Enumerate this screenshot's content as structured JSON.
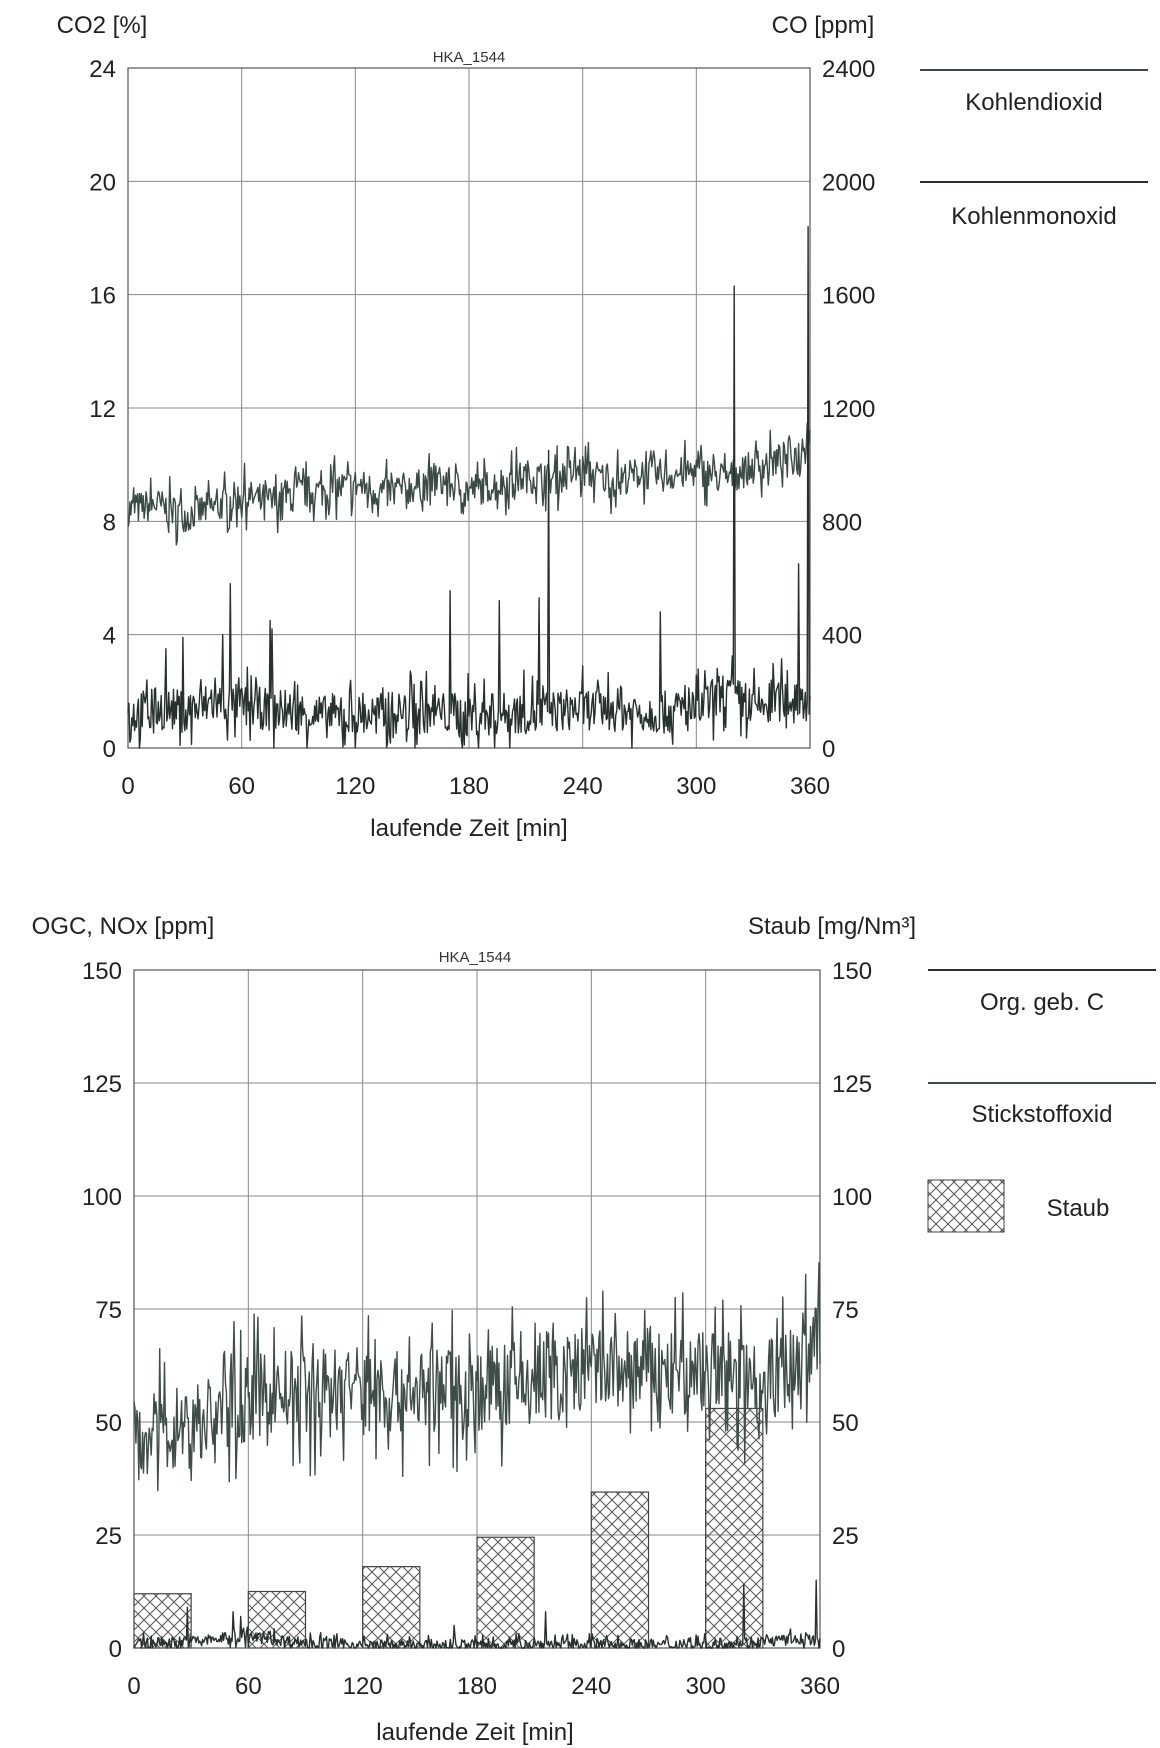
{
  "chart_data": [
    {
      "type": "line",
      "title": "HKA_1544",
      "xlabel": "laufende Zeit [min]",
      "ylabel_left": "CO2 [%]",
      "ylabel_right": "CO [ppm]",
      "xlim": [
        0,
        360
      ],
      "ylim_left": [
        0,
        24
      ],
      "ylim_right": [
        0,
        2400
      ],
      "x_ticks": [
        "0",
        "60",
        "120",
        "180",
        "240",
        "300",
        "360"
      ],
      "y_left_ticks": [
        "0",
        "4",
        "8",
        "12",
        "16",
        "20",
        "24"
      ],
      "y_right_ticks": [
        "0",
        "400",
        "800",
        "1200",
        "1600",
        "2000",
        "2400"
      ],
      "grid": true,
      "legend_position": "right",
      "series": [
        {
          "name": "Kohlendioxid",
          "axis": "left",
          "color": "#3b4a44",
          "x": [
            0,
            15,
            30,
            45,
            60,
            75,
            90,
            105,
            120,
            135,
            150,
            165,
            180,
            195,
            210,
            225,
            240,
            255,
            270,
            285,
            300,
            315,
            330,
            345,
            355,
            360
          ],
          "y": [
            8.4,
            8.6,
            8.2,
            8.5,
            8.9,
            8.7,
            9.0,
            9.1,
            9.3,
            9.0,
            9.2,
            9.4,
            9.1,
            9.3,
            9.6,
            9.5,
            9.8,
            9.4,
            9.7,
            9.6,
            9.8,
            9.5,
            9.9,
            10.2,
            10.4,
            11.6
          ]
        },
        {
          "name": "Kohlenmonoxid",
          "axis": "right",
          "color": "#26302c",
          "x": [
            0,
            15,
            30,
            45,
            60,
            75,
            90,
            105,
            120,
            135,
            150,
            165,
            180,
            195,
            210,
            225,
            240,
            255,
            270,
            285,
            300,
            315,
            330,
            345,
            355,
            360
          ],
          "y": [
            120,
            140,
            130,
            160,
            150,
            135,
            125,
            110,
            110,
            120,
            130,
            125,
            115,
            120,
            125,
            130,
            140,
            135,
            130,
            125,
            130,
            200,
            140,
            170,
            180,
            160
          ],
          "peaks": [
            {
              "x": 20,
              "y": 350
            },
            {
              "x": 29,
              "y": 390
            },
            {
              "x": 50,
              "y": 400
            },
            {
              "x": 54,
              "y": 580
            },
            {
              "x": 75,
              "y": 450
            },
            {
              "x": 76,
              "y": 420
            },
            {
              "x": 170,
              "y": 555
            },
            {
              "x": 196,
              "y": 520
            },
            {
              "x": 217,
              "y": 530
            },
            {
              "x": 222,
              "y": 1050
            },
            {
              "x": 281,
              "y": 480
            },
            {
              "x": 320,
              "y": 1630
            },
            {
              "x": 354,
              "y": 650
            },
            {
              "x": 359,
              "y": 1840
            }
          ]
        }
      ]
    },
    {
      "type": "line",
      "title": "HKA_1544",
      "xlabel": "laufende Zeit [min]",
      "ylabel_left": "OGC, NOx [ppm]",
      "ylabel_right": "Staub [mg/Nm³]",
      "xlim": [
        0,
        360
      ],
      "ylim_left": [
        0,
        150
      ],
      "ylim_right": [
        0,
        150
      ],
      "x_ticks": [
        "0",
        "60",
        "120",
        "180",
        "240",
        "300",
        "360"
      ],
      "y_left_ticks": [
        "0",
        "25",
        "50",
        "75",
        "100",
        "125",
        "150"
      ],
      "y_right_ticks": [
        "0",
        "25",
        "50",
        "75",
        "100",
        "125",
        "150"
      ],
      "grid": true,
      "legend_position": "right",
      "series": [
        {
          "name": "Org. geb. C",
          "axis": "left",
          "color": "#26302c",
          "x": [
            0,
            30,
            60,
            90,
            120,
            150,
            180,
            210,
            240,
            270,
            300,
            330,
            355,
            360
          ],
          "y": [
            0.8,
            1.5,
            2.5,
            1.2,
            0.6,
            0.6,
            0.7,
            0.8,
            0.9,
            0.7,
            0.8,
            1.5,
            2.0,
            1.0
          ],
          "peaks": [
            {
              "x": 28,
              "y": 9
            },
            {
              "x": 52,
              "y": 8
            },
            {
              "x": 56,
              "y": 7
            },
            {
              "x": 168,
              "y": 5
            },
            {
              "x": 216,
              "y": 8
            },
            {
              "x": 320,
              "y": 14
            },
            {
              "x": 358,
              "y": 15
            }
          ]
        },
        {
          "name": "Stickstoffoxid",
          "axis": "left",
          "color": "#3f4d47",
          "x": [
            0,
            15,
            30,
            45,
            60,
            75,
            90,
            105,
            120,
            135,
            150,
            165,
            180,
            195,
            210,
            225,
            240,
            255,
            270,
            285,
            300,
            315,
            330,
            345,
            360
          ],
          "y": [
            46,
            48,
            50,
            52,
            55,
            57,
            56,
            58,
            58,
            56,
            57,
            58,
            57,
            58,
            59,
            60,
            62,
            61,
            62,
            60,
            61,
            60,
            59,
            62,
            70
          ]
        },
        {
          "name": "Staub",
          "axis": "right",
          "type": "bar",
          "pattern": "crosshatch",
          "bars": [
            {
              "x_start": 0,
              "x_end": 30,
              "value": 12
            },
            {
              "x_start": 60,
              "x_end": 90,
              "value": 12.5
            },
            {
              "x_start": 120,
              "x_end": 150,
              "value": 18
            },
            {
              "x_start": 180,
              "x_end": 210,
              "value": 24.5
            },
            {
              "x_start": 240,
              "x_end": 270,
              "value": 34.5
            },
            {
              "x_start": 300,
              "x_end": 330,
              "value": 53
            }
          ]
        }
      ]
    }
  ]
}
